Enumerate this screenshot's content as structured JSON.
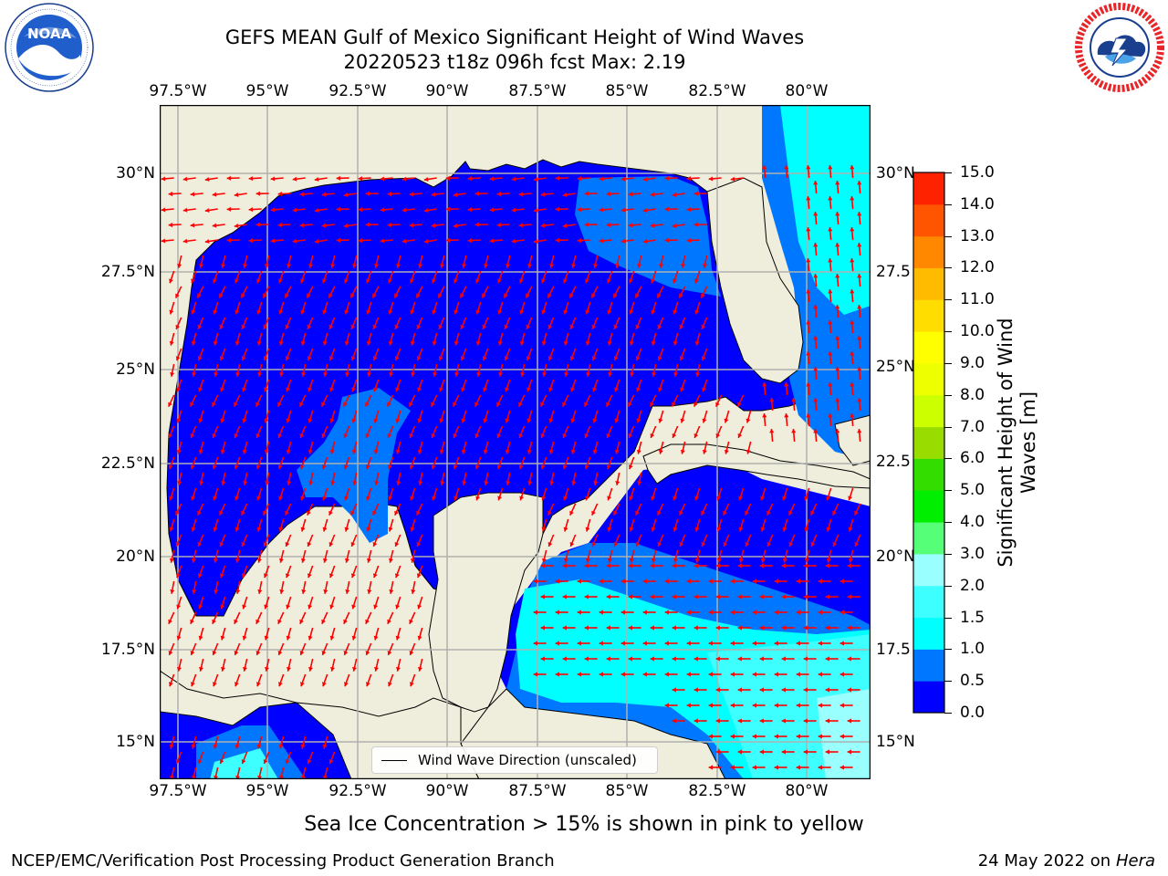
{
  "header": {
    "title_line1": "GEFS MEAN Gulf of Mexico Significant Height of Wind Waves",
    "title_line2": "20220523 t18z 096h fcst   Max: 2.19"
  },
  "logos": {
    "noaa": {
      "text": "NOAA",
      "ring_text": "NATIONAL OCEANIC AND ATMOSPHERIC ADMINISTRATION · U.S. DEPARTMENT OF COMMERCE"
    },
    "nws": {
      "ring_text": "NATIONAL WEATHER SERVICE"
    }
  },
  "map": {
    "lon_ticks": [
      "97.5°W",
      "95°W",
      "92.5°W",
      "90°W",
      "87.5°W",
      "85°W",
      "82.5°W",
      "80°W"
    ],
    "lat_ticks": [
      "30°N",
      "27.5°N",
      "25°N",
      "22.5°N",
      "20°N",
      "17.5°N",
      "15°N"
    ],
    "right_lat_ticks": [
      "30°N",
      "27.5",
      "25°N",
      "22.5",
      "20°N",
      "17.5",
      "15°N"
    ],
    "colors": {
      "land": "#efeedd",
      "coast": "#000000",
      "grid": "#b0b0b0",
      "arrow": "#ff0000"
    }
  },
  "colorbar": {
    "label_line1": "Significant Height of Wind",
    "label_line2": "Waves [m]",
    "levels": [
      "0.0",
      "0.5",
      "1.0",
      "1.5",
      "2.0",
      "3.0",
      "4.0",
      "5.0",
      "6.0",
      "7.0",
      "8.0",
      "9.0",
      "10.0",
      "11.0",
      "12.0",
      "13.0",
      "14.0",
      "15.0"
    ],
    "colors": [
      "#0000ff",
      "#0077ff",
      "#00ffff",
      "#3dffff",
      "#99ffff",
      "#55ff77",
      "#00ee00",
      "#33dd00",
      "#99dd00",
      "#ccff00",
      "#eeff00",
      "#ffff00",
      "#ffdd00",
      "#ffbb00",
      "#ff8800",
      "#ff5500",
      "#ff2200"
    ]
  },
  "legend": {
    "label": "Wind Wave Direction (unscaled)"
  },
  "footer": {
    "note": "Sea Ice Concentration > 15% is shown in pink to yellow",
    "credit": "NCEP/EMC/Verification Post Processing Product Generation Branch",
    "date": "24 May 2022 on",
    "host": "Hera"
  }
}
